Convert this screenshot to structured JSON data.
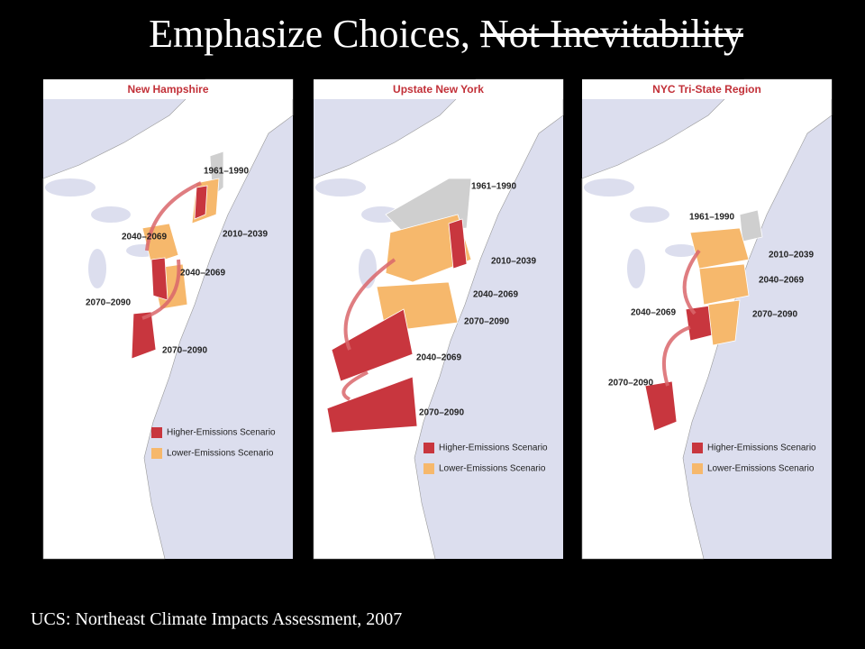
{
  "slide": {
    "title": {
      "main": "Emphasize Choices,",
      "struck": "Not Inevitability"
    },
    "panels": [
      {
        "title": "New Hampshire",
        "labels": [
          "1961–1990",
          "2010–2039",
          "2040–2069",
          "2040–2069",
          "2070–2090",
          "2070–2090"
        ],
        "legend": [
          "Higher-Emissions Scenario",
          "Lower-Emissions Scenario"
        ]
      },
      {
        "title": "Upstate New York",
        "labels": [
          "1961–1990",
          "2010–2039",
          "2040–2069",
          "2070–2090",
          "2040–2069",
          "2070–2090"
        ],
        "legend": [
          "Higher-Emissions Scenario",
          "Lower-Emissions Scenario"
        ]
      },
      {
        "title": "NYC Tri-State Region",
        "labels": [
          "1961–1990",
          "2010–2039",
          "2040–2069",
          "2070–2090",
          "2040–2069",
          "2070–2090"
        ],
        "legend": [
          "Higher-Emissions Scenario",
          "Lower-Emissions Scenario"
        ]
      }
    ],
    "source": "UCS: Northeast Climate Impacts Assessment, 2007"
  }
}
